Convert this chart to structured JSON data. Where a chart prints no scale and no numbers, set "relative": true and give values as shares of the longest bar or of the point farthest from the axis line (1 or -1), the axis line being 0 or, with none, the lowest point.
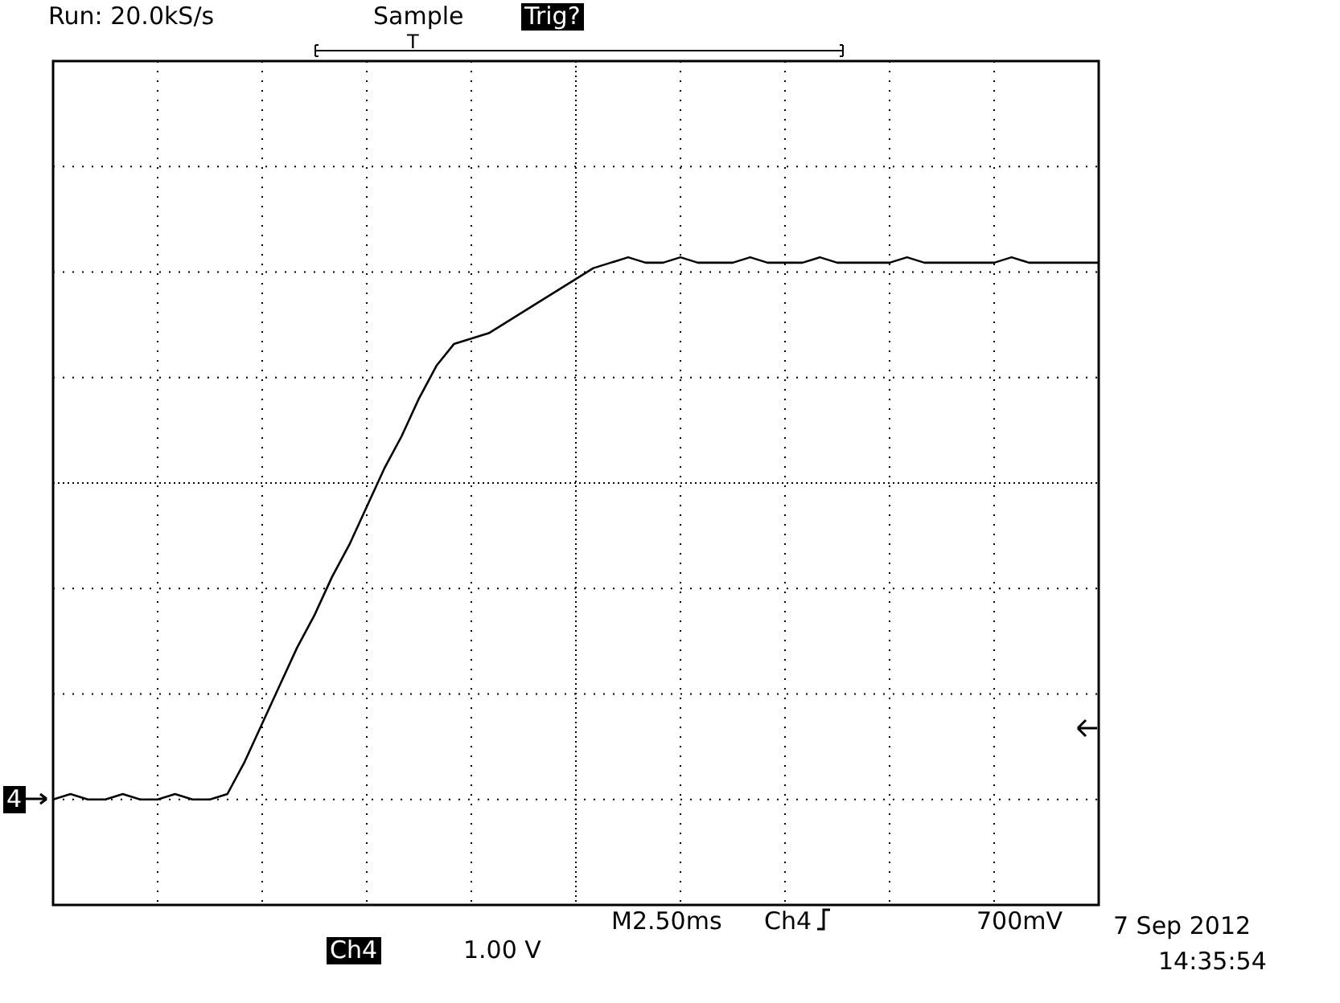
{
  "chart_data": {
    "type": "line",
    "relative": true,
    "grid": true,
    "marker": "none",
    "line_style": "solid",
    "tick_labels": false,
    "categories": [
      null,
      null,
      null,
      null,
      null,
      null,
      null,
      null,
      null,
      null,
      null,
      null,
      null,
      null,
      null,
      null,
      null,
      null,
      null,
      null,
      null,
      null,
      null,
      null,
      null,
      null,
      null,
      null,
      null,
      null,
      null,
      null,
      null,
      null,
      null,
      null,
      null,
      null,
      null,
      null,
      null,
      null,
      null,
      null,
      null,
      null,
      null,
      null,
      null,
      null,
      null,
      null,
      null,
      null,
      null,
      null,
      null,
      null,
      null,
      null,
      null
    ],
    "series": [
      {
        "color": "#000000",
        "values": [
          0.0,
          0.01,
          0.0,
          0.0,
          0.01,
          0.0,
          0.0,
          0.01,
          0.0,
          0.0,
          0.01,
          0.07,
          0.14,
          0.21,
          0.28,
          0.34,
          0.41,
          0.47,
          0.54,
          0.61,
          0.67,
          0.74,
          0.8,
          0.84,
          0.85,
          0.86,
          0.88,
          0.9,
          0.92,
          0.94,
          0.96,
          0.98,
          0.99,
          1.0,
          0.99,
          0.99,
          1.0,
          0.99,
          0.99,
          0.99,
          1.0,
          0.99,
          0.99,
          0.99,
          1.0,
          0.99,
          0.99,
          0.99,
          0.99,
          1.0,
          0.99,
          0.99,
          0.99,
          0.99,
          0.99,
          1.0,
          0.99,
          0.99,
          0.99,
          0.99,
          0.99
        ]
      }
    ],
    "annotations": [
      "Run: 20.0kS/s",
      "Sample",
      "Trig?",
      "T",
      "M2.50ms",
      "Ch4",
      "700mV",
      "Ch4",
      "1.00 V",
      "7 Sep 2012",
      "14:35:54",
      "4"
    ]
  }
}
